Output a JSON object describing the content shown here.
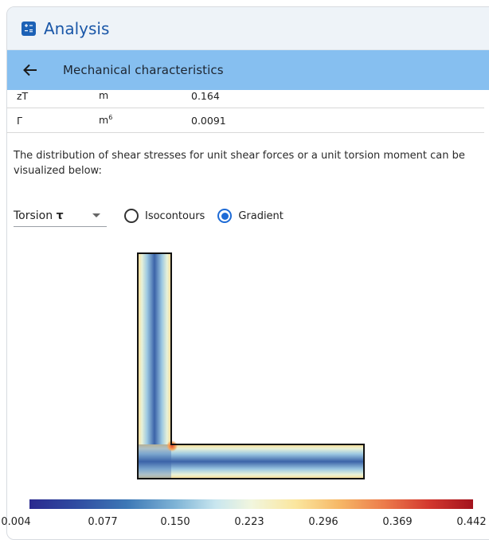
{
  "app": {
    "title": "Analysis"
  },
  "header": {
    "title": "Mechanical characteristics"
  },
  "table": {
    "rows": [
      {
        "name": "zT",
        "unit": "m",
        "unit_sup": "",
        "value": "0.164"
      },
      {
        "name": "Γ",
        "unit": "m",
        "unit_sup": "6",
        "value": "0.0091"
      }
    ]
  },
  "description": "The distribution of shear stresses for unit shear forces or a unit torsion moment can be visualized below:",
  "controls": {
    "select": {
      "label": "Torsion",
      "symbol": "τ"
    },
    "radios": [
      {
        "label": "Isocontours",
        "checked": false
      },
      {
        "label": "Gradient",
        "checked": true
      }
    ]
  },
  "colorbar": {
    "ticks": [
      "0.004",
      "0.077",
      "0.150",
      "0.223",
      "0.296",
      "0.369",
      "0.442"
    ],
    "colors": {
      "low": "#2b2a8f",
      "mid": "#f1f6de",
      "high": "#a3131d"
    }
  },
  "icons": {
    "title": "calculator-icon",
    "back": "arrow-left-icon"
  }
}
